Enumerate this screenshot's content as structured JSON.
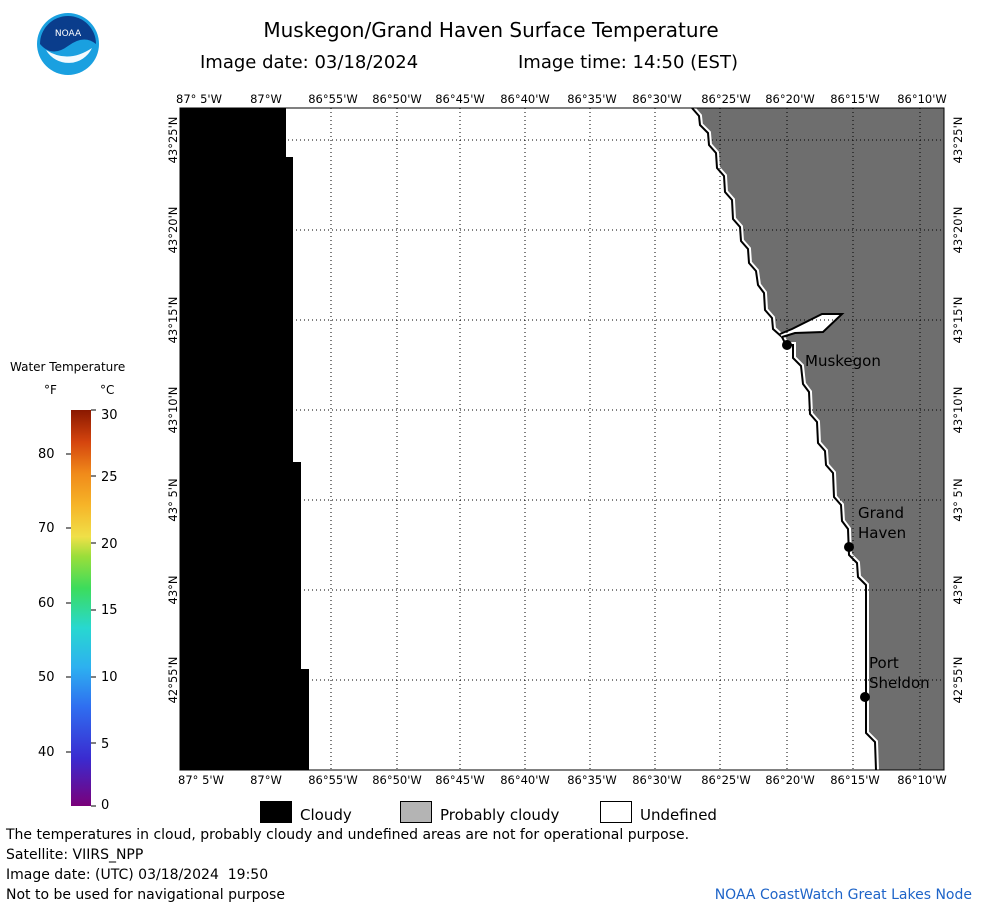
{
  "header": {
    "title": "Muskegon/Grand Haven Surface Temperature",
    "image_date": "Image date: 03/18/2024",
    "image_time": "Image time: 14:50 (EST)"
  },
  "logo": {
    "text": "NOAA",
    "icon": "noaa-logo"
  },
  "map": {
    "lon_ticks": [
      "87° 5'W",
      "87°W",
      "86°55'W",
      "86°50'W",
      "86°45'W",
      "86°40'W",
      "86°35'W",
      "86°30'W",
      "86°25'W",
      "86°20'W",
      "86°15'W",
      "86°10'W"
    ],
    "lat_ticks": [
      "43°25'N",
      "43°20'N",
      "43°15'N",
      "43°10'N",
      "43° 5'N",
      "43°N",
      "42°55'N"
    ],
    "cities": [
      {
        "name_lines": [
          "Muskegon"
        ]
      },
      {
        "name_lines": [
          "Grand",
          "Haven"
        ]
      },
      {
        "name_lines": [
          "Port",
          "Sheldon"
        ]
      }
    ],
    "colors": {
      "cloudy": "#000000",
      "land": "#6e6e6e",
      "water_undefined": "#ffffff",
      "grid": "#000000"
    }
  },
  "color_scale": {
    "title": "Water Temperature",
    "unit_f": "°F",
    "unit_c": "°C",
    "f_labels": [
      "80",
      "70",
      "60",
      "50",
      "40"
    ],
    "c_labels": [
      "30",
      "25",
      "20",
      "15",
      "10",
      "5",
      "0"
    ]
  },
  "legend": [
    {
      "label": "Cloudy",
      "color": "#000000"
    },
    {
      "label": "Probably cloudy",
      "color": "#b4b4b4"
    },
    {
      "label": "Undefined",
      "color": "#ffffff"
    }
  ],
  "footer": {
    "disclaimer": "The temperatures in cloud, probably cloudy and undefined areas are not for operational purpose.",
    "satellite": "Satellite: VIIRS_NPP",
    "utc_date": "Image date: (UTC) 03/18/2024  19:50",
    "nav_warning": "Not to be used for navigational purpose",
    "node": "NOAA CoastWatch Great Lakes Node"
  }
}
